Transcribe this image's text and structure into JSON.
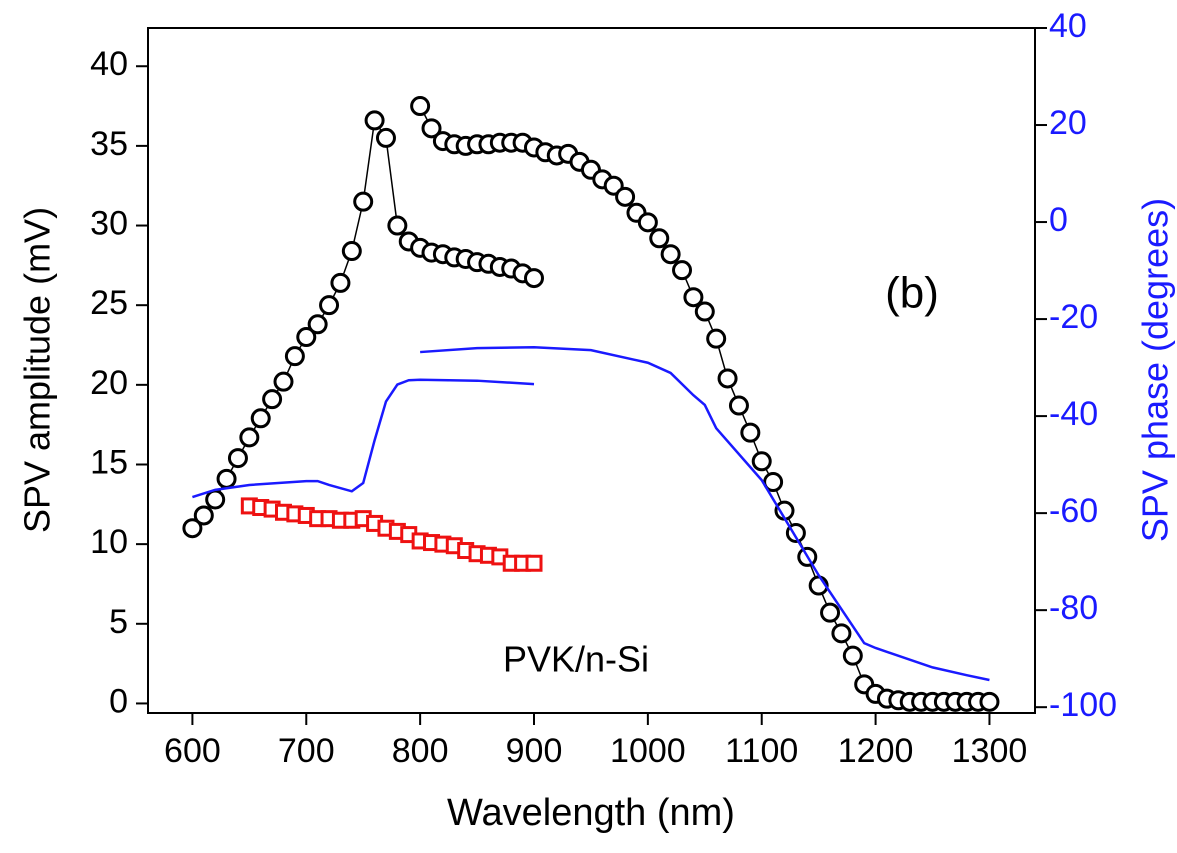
{
  "chart_data": {
    "type": "scatter",
    "xlabel": "Wavelength (nm)",
    "ylabel": "SPV amplitude (mV)",
    "y2label": "SPV phase (degrees)",
    "annotations": [
      "(b)",
      "PVK/n-Si"
    ],
    "xlim": [
      561,
      1340
    ],
    "ylim": [
      -0.6,
      42.4
    ],
    "y2lim": [
      -101.2,
      40
    ],
    "xticks": [
      600,
      700,
      800,
      900,
      1000,
      1100,
      1200,
      1300
    ],
    "yticks": [
      0,
      5,
      10,
      15,
      20,
      25,
      30,
      35,
      40
    ],
    "y2ticks": [
      -100,
      -80,
      -60,
      -40,
      -20,
      0,
      20,
      40
    ],
    "y2color": "#1a1aff",
    "series": [
      {
        "color": "#000000",
        "marker": "circle",
        "line": true,
        "x": [
          600,
          610,
          620,
          630,
          640,
          650,
          660,
          670,
          680,
          690,
          700,
          710,
          720,
          730,
          740,
          750,
          760,
          770,
          780,
          790,
          800,
          810,
          820,
          830,
          840,
          850,
          860,
          870,
          880,
          890,
          900
        ],
        "values": [
          11.0,
          11.8,
          12.8,
          14.1,
          15.4,
          16.7,
          17.9,
          19.1,
          20.2,
          21.8,
          23.0,
          23.8,
          25.0,
          26.4,
          28.4,
          31.5,
          36.6,
          35.5,
          30.0,
          29.0,
          28.6,
          28.3,
          28.2,
          28.0,
          27.9,
          27.7,
          27.6,
          27.4,
          27.3,
          27.0,
          26.7
        ]
      },
      {
        "color": "#000000",
        "marker": "circle",
        "line": true,
        "x": [
          800,
          810,
          820,
          830,
          840,
          850,
          860,
          870,
          880,
          890,
          900,
          910,
          920,
          930,
          940,
          950,
          960,
          970,
          980,
          990,
          1000,
          1010,
          1020,
          1030,
          1040,
          1050,
          1060,
          1070,
          1080,
          1090,
          1100,
          1110,
          1120,
          1130,
          1140,
          1150,
          1160,
          1170,
          1180,
          1190,
          1200,
          1210,
          1220,
          1230,
          1240,
          1250,
          1260,
          1270,
          1280,
          1290,
          1300
        ],
        "values": [
          37.5,
          36.1,
          35.3,
          35.1,
          35.0,
          35.1,
          35.1,
          35.2,
          35.2,
          35.2,
          34.9,
          34.6,
          34.4,
          34.5,
          34.0,
          33.5,
          32.9,
          32.5,
          31.8,
          30.8,
          30.2,
          29.2,
          28.2,
          27.2,
          25.5,
          24.6,
          22.9,
          20.4,
          18.7,
          17.0,
          15.2,
          13.9,
          12.1,
          10.7,
          9.2,
          7.4,
          5.7,
          4.4,
          3.0,
          1.2,
          0.6,
          0.3,
          0.2,
          0.1,
          0.1,
          0.1,
          0.1,
          0.1,
          0.1,
          0.1,
          0.1
        ]
      },
      {
        "color": "#ee1111",
        "marker": "square",
        "line": false,
        "x": [
          650,
          660,
          670,
          680,
          690,
          700,
          710,
          720,
          730,
          740,
          750,
          760,
          770,
          780,
          790,
          800,
          810,
          820,
          830,
          840,
          850,
          860,
          870,
          880,
          890,
          900
        ],
        "values": [
          12.4,
          12.3,
          12.2,
          12.0,
          11.9,
          11.8,
          11.6,
          11.6,
          11.5,
          11.5,
          11.6,
          11.3,
          11.0,
          10.8,
          10.6,
          10.2,
          10.1,
          10.0,
          9.9,
          9.6,
          9.4,
          9.3,
          9.2,
          8.8,
          8.8,
          8.8
        ]
      },
      {
        "color": "#1a1aff",
        "marker": "none",
        "line": true,
        "axis": "y2",
        "x": [
          600,
          620,
          650,
          700,
          710,
          720,
          740,
          750,
          760,
          770,
          780,
          790,
          800,
          850,
          900
        ],
        "values": [
          -56.7,
          -55.2,
          -54.2,
          -53.4,
          -53.4,
          -54.2,
          -55.5,
          -53.8,
          -45.0,
          -37.0,
          -33.5,
          -32.6,
          -32.5,
          -32.7,
          -33.4
        ]
      },
      {
        "color": "#1a1aff",
        "marker": "none",
        "line": true,
        "axis": "y2",
        "x": [
          800,
          850,
          900,
          950,
          1000,
          1020,
          1040,
          1050,
          1060,
          1100,
          1150,
          1190,
          1200,
          1250,
          1280,
          1300
        ],
        "values": [
          -26.8,
          -26.0,
          -25.8,
          -26.4,
          -29.0,
          -31.1,
          -35.7,
          -37.7,
          -42.5,
          -53.2,
          -72.8,
          -86.8,
          -87.8,
          -91.8,
          -93.4,
          -94.4
        ]
      }
    ]
  }
}
